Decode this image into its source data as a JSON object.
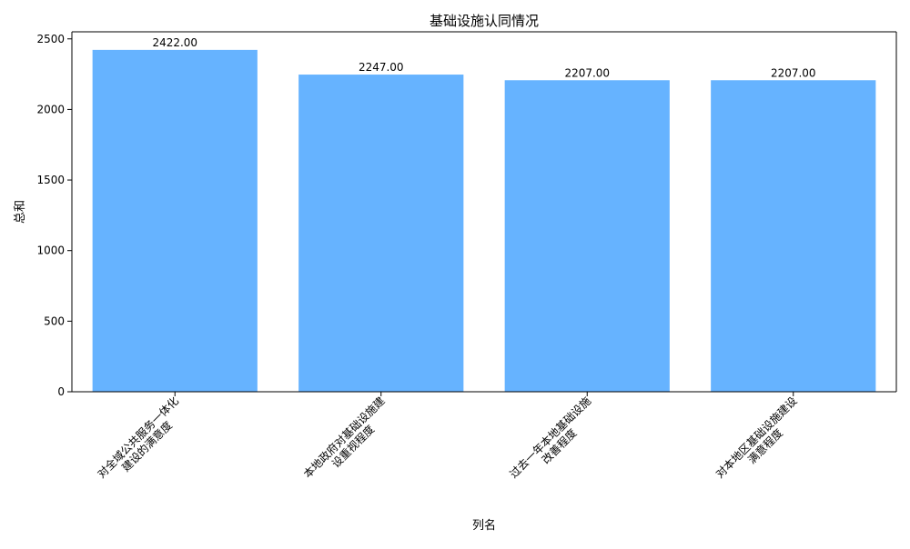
{
  "chart_data": {
    "type": "bar",
    "title": "基础设施认同情况",
    "xlabel": "列名",
    "ylabel": "总和",
    "categories": [
      "对全域公共服务一体化建设的满意度",
      "本地政府对基础设施建设重视程度",
      "过去一年本地基础设施改善程度",
      "对本地区基础设施建设满意程度"
    ],
    "category_lines": [
      [
        "对全域公共服务一体化",
        "建设的满意度"
      ],
      [
        "本地政府对基础设施建",
        "设重视程度"
      ],
      [
        "过去一年本地基础设施",
        "改善程度"
      ],
      [
        "对本地区基础设施建设",
        "满意程度"
      ]
    ],
    "values": [
      2422.0,
      2247.0,
      2207.0,
      2207.0
    ],
    "value_labels": [
      "2422.00",
      "2247.00",
      "2207.00",
      "2207.00"
    ],
    "ylim": [
      0,
      2550
    ],
    "yticks": [
      0,
      500,
      1000,
      1500,
      2000,
      2500
    ],
    "bar_color": "#66b3ff",
    "grid": false,
    "legend": "none"
  }
}
